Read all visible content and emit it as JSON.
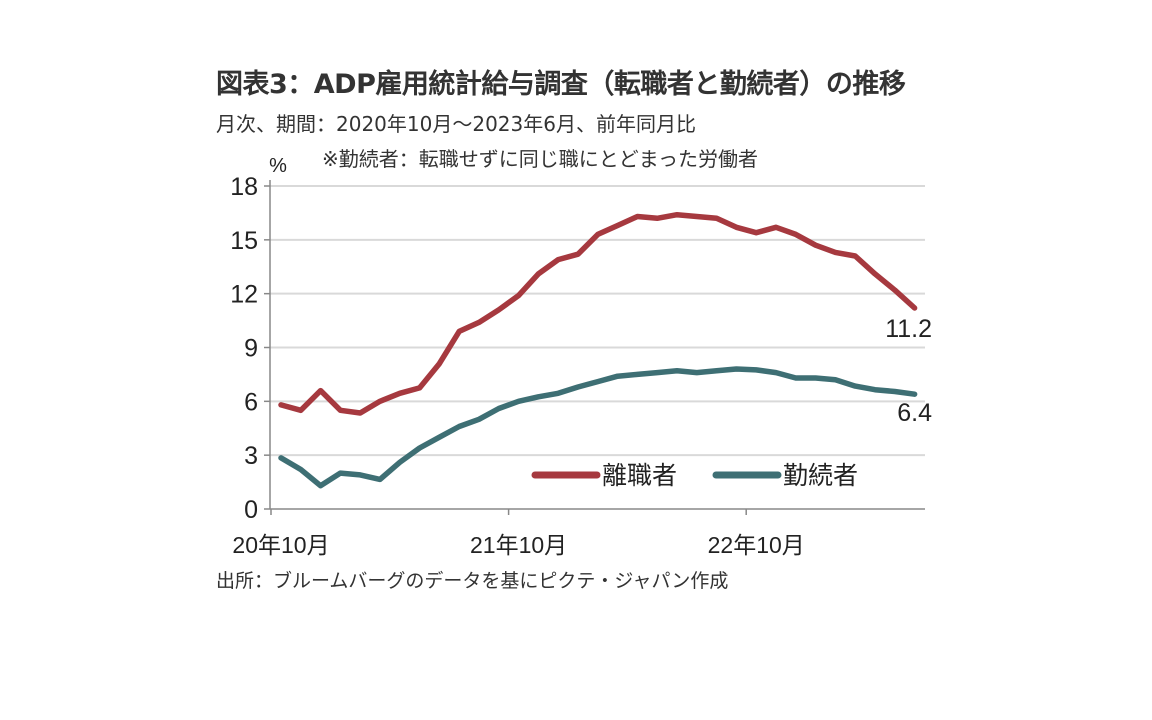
{
  "title": "図表3：ADP雇用統計給与調査（転職者と勤続者）の推移",
  "subtitle": "月次、期間：2020年10月～2023年6月、前年同月比",
  "note": "※勤続者：転職せずに同じ職にとどまった労働者",
  "source": "出所：ブルームバーグのデータを基にピクテ・ジャパン作成",
  "chart_data": {
    "type": "line",
    "ylabel": "%",
    "ylim": [
      0,
      18
    ],
    "yticks": [
      0,
      3,
      6,
      9,
      12,
      15,
      18
    ],
    "x_start": "2020-10",
    "x_end": "2023-06",
    "frequency": "monthly",
    "xtick_labels": [
      "20年10月",
      "21年10月",
      "22年10月"
    ],
    "grid": true,
    "legend_position": "bottom-right",
    "series": [
      {
        "name": "離職者",
        "color": "#a6393f",
        "values": [
          5.8,
          5.5,
          6.6,
          5.5,
          5.35,
          6.0,
          6.45,
          6.75,
          8.1,
          9.9,
          10.4,
          11.1,
          11.9,
          13.1,
          13.9,
          14.2,
          15.3,
          15.8,
          16.3,
          16.2,
          16.4,
          16.3,
          16.2,
          15.7,
          15.4,
          15.7,
          15.3,
          14.7,
          14.3,
          14.1,
          13.1,
          12.2,
          11.2
        ],
        "end_label": "11.2"
      },
      {
        "name": "勤続者",
        "color": "#3e6f74",
        "values": [
          2.85,
          2.2,
          1.3,
          2.0,
          1.9,
          1.65,
          2.6,
          3.4,
          4.0,
          4.6,
          5.0,
          5.6,
          6.0,
          6.25,
          6.45,
          6.8,
          7.1,
          7.4,
          7.5,
          7.6,
          7.7,
          7.6,
          7.7,
          7.8,
          7.75,
          7.6,
          7.3,
          7.3,
          7.2,
          6.85,
          6.65,
          6.55,
          6.4
        ],
        "end_label": "6.4"
      }
    ]
  }
}
